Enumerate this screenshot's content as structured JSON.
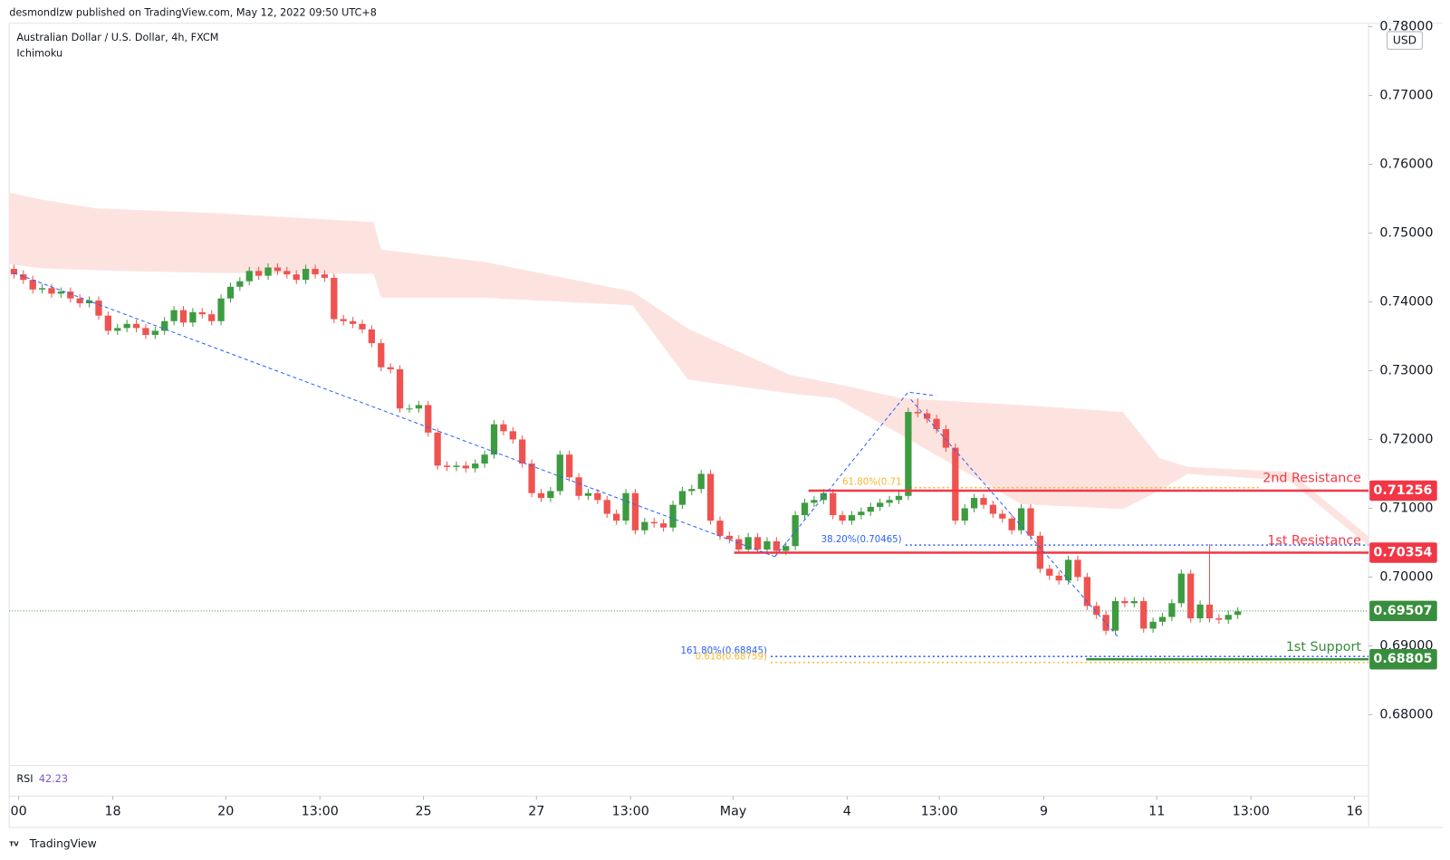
{
  "chart_data": {
    "type": "candlestick",
    "publisher": "desmondlzw published on TradingView.com, May 12, 2022 09:50 UTC+8",
    "title": "Australian Dollar / U.S. Dollar, 4h, FXCM",
    "indicator": "Ichimoku",
    "currency": "USD",
    "footer": "TradingView",
    "up_color": "#3d9b40",
    "down_color": "#ef5350",
    "xlim": [
      -0.5,
      143.9
    ],
    "ylim": [
      0.6726,
      0.7805
    ],
    "xticks": [
      {
        "value": 0.5,
        "label": "00"
      },
      {
        "value": 10.5,
        "label": "18"
      },
      {
        "value": 22.5,
        "label": "20"
      },
      {
        "value": 32.5,
        "label": "13:00"
      },
      {
        "value": 43.5,
        "label": "25"
      },
      {
        "value": 55.5,
        "label": "27"
      },
      {
        "value": 65.5,
        "label": "13:00"
      },
      {
        "value": 76.4,
        "label": "May"
      },
      {
        "value": 88.5,
        "label": "4"
      },
      {
        "value": 98.3,
        "label": "13:00"
      },
      {
        "value": 109.4,
        "label": "9"
      },
      {
        "value": 121.4,
        "label": "11"
      },
      {
        "value": 131.4,
        "label": "13:00"
      },
      {
        "value": 142.4,
        "label": "16"
      }
    ],
    "yticks": [
      {
        "value": 0.68,
        "label": "0.68000"
      },
      {
        "value": 0.69,
        "label": "0.69000"
      },
      {
        "value": 0.7,
        "label": "0.70000"
      },
      {
        "value": 0.71,
        "label": "0.71000"
      },
      {
        "value": 0.72,
        "label": "0.72000"
      },
      {
        "value": 0.73,
        "label": "0.73000"
      },
      {
        "value": 0.74,
        "label": "0.74000"
      },
      {
        "value": 0.75,
        "label": "0.75000"
      },
      {
        "value": 0.76,
        "label": "0.76000"
      },
      {
        "value": 0.77,
        "label": "0.77000"
      },
      {
        "value": 0.78,
        "label": "0.78000"
      }
    ],
    "open": [
      0.7448,
      0.744,
      0.7432,
      0.7418,
      0.742,
      0.7412,
      0.7415,
      0.7405,
      0.7398,
      0.7402,
      0.738,
      0.7358,
      0.7362,
      0.7368,
      0.7362,
      0.7352,
      0.7358,
      0.7372,
      0.7388,
      0.737,
      0.7385,
      0.7382,
      0.7372,
      0.7405,
      0.7422,
      0.743,
      0.7445,
      0.7438,
      0.745,
      0.7445,
      0.744,
      0.7432,
      0.7448,
      0.744,
      0.7435,
      0.7375,
      0.7372,
      0.7368,
      0.736,
      0.734,
      0.7305,
      0.7302,
      0.7245,
      0.7245,
      0.725,
      0.721,
      0.7162,
      0.716,
      0.7162,
      0.7158,
      0.7165,
      0.7178,
      0.7222,
      0.7212,
      0.72,
      0.7165,
      0.7122,
      0.7115,
      0.7125,
      0.7178,
      0.7145,
      0.7118,
      0.7122,
      0.7112,
      0.7092,
      0.7082,
      0.7122,
      0.7068,
      0.708,
      0.7078,
      0.7072,
      0.7105,
      0.7125,
      0.7128,
      0.715,
      0.7082,
      0.706,
      0.7055,
      0.704,
      0.7058,
      0.704,
      0.7052,
      0.7038,
      0.7045,
      0.709,
      0.7108,
      0.7112,
      0.7122,
      0.709,
      0.7082,
      0.709,
      0.7095,
      0.7102,
      0.7108,
      0.7112,
      0.7118,
      0.724,
      0.7238,
      0.723,
      0.7215,
      0.7188,
      0.7082,
      0.71,
      0.7115,
      0.7105,
      0.7092,
      0.7085,
      0.7068,
      0.71,
      0.706,
      0.7012,
      0.7002,
      0.6995,
      0.7025,
      0.7,
      0.6958,
      0.6945,
      0.6922,
      0.6965,
      0.6962,
      0.6965,
      0.6925,
      0.6935,
      0.6942,
      0.6962,
      0.7005,
      0.694,
      0.696,
      0.694,
      0.6938,
      0.6945
    ],
    "high": [
      0.7454,
      0.7446,
      0.7438,
      0.7426,
      0.7426,
      0.7421,
      0.7421,
      0.7411,
      0.7408,
      0.7408,
      0.7386,
      0.7368,
      0.7374,
      0.7374,
      0.7368,
      0.7364,
      0.7378,
      0.7394,
      0.7394,
      0.7391,
      0.7391,
      0.7388,
      0.7411,
      0.7428,
      0.7436,
      0.7451,
      0.7451,
      0.7456,
      0.7456,
      0.7451,
      0.7446,
      0.7454,
      0.7454,
      0.7446,
      0.7441,
      0.7381,
      0.7378,
      0.7374,
      0.7366,
      0.7346,
      0.7311,
      0.7308,
      0.7251,
      0.7256,
      0.7256,
      0.7216,
      0.7168,
      0.7168,
      0.7168,
      0.7171,
      0.7184,
      0.7228,
      0.7228,
      0.7218,
      0.7206,
      0.7171,
      0.7128,
      0.7131,
      0.7184,
      0.7184,
      0.7151,
      0.7128,
      0.7128,
      0.7118,
      0.7098,
      0.7128,
      0.7128,
      0.7086,
      0.7086,
      0.7084,
      0.7111,
      0.7131,
      0.7134,
      0.7156,
      0.7156,
      0.7088,
      0.7066,
      0.7061,
      0.7064,
      0.7064,
      0.7058,
      0.7058,
      0.7051,
      0.7096,
      0.7114,
      0.7118,
      0.7128,
      0.7128,
      0.7096,
      0.7096,
      0.7101,
      0.7108,
      0.7114,
      0.7118,
      0.7124,
      0.7246,
      0.726,
      0.7244,
      0.7236,
      0.7221,
      0.7194,
      0.7106,
      0.7121,
      0.7121,
      0.7111,
      0.7098,
      0.7091,
      0.7106,
      0.7106,
      0.7066,
      0.7018,
      0.7008,
      0.7031,
      0.7031,
      0.7006,
      0.6964,
      0.6951,
      0.6971,
      0.6971,
      0.6971,
      0.6971,
      0.6941,
      0.6948,
      0.6968,
      0.7011,
      0.7011,
      0.6966,
      0.7048,
      0.6946,
      0.6951,
      0.6956
    ],
    "low": [
      0.7434,
      0.7426,
      0.7412,
      0.7412,
      0.7406,
      0.7406,
      0.7399,
      0.7392,
      0.7392,
      0.7374,
      0.7352,
      0.7352,
      0.7356,
      0.7356,
      0.7346,
      0.7346,
      0.7352,
      0.7366,
      0.7364,
      0.7364,
      0.7376,
      0.7366,
      0.7366,
      0.7399,
      0.7416,
      0.7424,
      0.7432,
      0.7432,
      0.7439,
      0.7434,
      0.7426,
      0.7426,
      0.7434,
      0.7429,
      0.7369,
      0.7366,
      0.7362,
      0.7354,
      0.7334,
      0.7299,
      0.7296,
      0.7239,
      0.7239,
      0.7239,
      0.7204,
      0.7156,
      0.7154,
      0.7154,
      0.7152,
      0.7152,
      0.7159,
      0.7172,
      0.7206,
      0.7194,
      0.7159,
      0.7116,
      0.7109,
      0.7109,
      0.7119,
      0.7139,
      0.7112,
      0.7112,
      0.7106,
      0.7086,
      0.7076,
      0.7076,
      0.7062,
      0.7062,
      0.7072,
      0.7066,
      0.7066,
      0.7099,
      0.7119,
      0.7122,
      0.7076,
      0.7054,
      0.7049,
      0.7034,
      0.7034,
      0.7034,
      0.7034,
      0.7032,
      0.7032,
      0.7039,
      0.7084,
      0.7102,
      0.7106,
      0.7084,
      0.7076,
      0.7076,
      0.7084,
      0.7089,
      0.7096,
      0.7102,
      0.7106,
      0.7112,
      0.7232,
      0.7224,
      0.7209,
      0.7182,
      0.7076,
      0.7076,
      0.7094,
      0.7099,
      0.7086,
      0.7079,
      0.7062,
      0.7062,
      0.7054,
      0.7006,
      0.6996,
      0.6989,
      0.6989,
      0.6994,
      0.6952,
      0.6939,
      0.6916,
      0.6916,
      0.6956,
      0.6956,
      0.6919,
      0.6919,
      0.6929,
      0.6936,
      0.6956,
      0.6934,
      0.6934,
      0.6934,
      0.6932,
      0.6932,
      0.6939
    ],
    "close": [
      0.744,
      0.7432,
      0.7418,
      0.742,
      0.7412,
      0.7415,
      0.7405,
      0.7398,
      0.7402,
      0.738,
      0.7358,
      0.7362,
      0.7368,
      0.7362,
      0.7352,
      0.7358,
      0.7372,
      0.7388,
      0.737,
      0.7385,
      0.7382,
      0.7372,
      0.7405,
      0.7422,
      0.743,
      0.7445,
      0.7438,
      0.745,
      0.7445,
      0.744,
      0.7432,
      0.7448,
      0.744,
      0.7435,
      0.7375,
      0.7372,
      0.7368,
      0.736,
      0.734,
      0.7305,
      0.7302,
      0.7245,
      0.7245,
      0.725,
      0.721,
      0.7162,
      0.716,
      0.7162,
      0.7158,
      0.7165,
      0.7178,
      0.7222,
      0.7212,
      0.72,
      0.7165,
      0.7122,
      0.7115,
      0.7125,
      0.7178,
      0.7145,
      0.7118,
      0.7122,
      0.7112,
      0.7092,
      0.7082,
      0.7122,
      0.7068,
      0.708,
      0.7078,
      0.7072,
      0.7105,
      0.7125,
      0.7128,
      0.715,
      0.7082,
      0.706,
      0.7055,
      0.704,
      0.7058,
      0.704,
      0.7052,
      0.7038,
      0.7045,
      0.709,
      0.7108,
      0.7112,
      0.7122,
      0.709,
      0.7082,
      0.709,
      0.7095,
      0.7102,
      0.7108,
      0.7112,
      0.7118,
      0.724,
      0.7238,
      0.723,
      0.7215,
      0.7188,
      0.7082,
      0.71,
      0.7115,
      0.7105,
      0.7092,
      0.7085,
      0.7068,
      0.71,
      0.706,
      0.7012,
      0.7002,
      0.6995,
      0.7025,
      0.7,
      0.6958,
      0.6945,
      0.6922,
      0.6965,
      0.6962,
      0.6965,
      0.6925,
      0.6935,
      0.6942,
      0.6962,
      0.7005,
      0.694,
      0.696,
      0.694,
      0.6938,
      0.6945,
      0.695
    ],
    "cloud": {
      "color": "#fde3df",
      "x": [
        -0.5,
        2.8,
        8.7,
        21.4,
        38.2,
        39,
        50,
        65.7,
        71.6,
        82.4,
        87.3,
        94.2,
        107,
        117.8,
        121.7,
        124.7,
        135.5,
        143.9
      ],
      "upper": [
        0.7559,
        0.7549,
        0.7536,
        0.7529,
        0.7516,
        0.7476,
        0.7458,
        0.7415,
        0.7361,
        0.7294,
        0.7281,
        0.726,
        0.725,
        0.724,
        0.7173,
        0.716,
        0.7153,
        0.7059
      ],
      "lower": [
        0.7455,
        0.7449,
        0.7446,
        0.7442,
        0.7441,
        0.7406,
        0.7406,
        0.7395,
        0.7287,
        0.7267,
        0.726,
        0.7207,
        0.7106,
        0.7099,
        0.7126,
        0.715,
        0.714,
        0.7045
      ]
    },
    "levels": [
      {
        "label": "2nd Resistance",
        "value": 0.71256,
        "start": 84.4,
        "color": "#f23645"
      },
      {
        "label": "1st Resistance",
        "value": 0.70354,
        "start": 76.5,
        "color": "#f23645"
      },
      {
        "label": "1st Support",
        "value": 0.68805,
        "start": 113.9,
        "color": "#388e3c"
      }
    ],
    "current_price": {
      "value": 0.69507,
      "color": "#388e3c"
    },
    "fib_levels": [
      {
        "label": "61.80%(0.71",
        "value": 0.713,
        "start": 94.7,
        "end": 132.5,
        "color": "#f5b82e"
      },
      {
        "label": "38.20%(0.70465)",
        "value": 0.70465,
        "start": 94.7,
        "end": 143.9,
        "color": "#2962ff"
      },
      {
        "label": "161.80%(0.68845)",
        "value": 0.68845,
        "start": 80.4,
        "end": 143.9,
        "color": "#2962ff"
      },
      {
        "label": "0.618(0.68759)",
        "value": 0.68759,
        "start": 80.4,
        "end": 143.9,
        "color": "#f5b82e"
      }
    ],
    "rsi": {
      "label": "RSI",
      "value": 42.23
    }
  }
}
